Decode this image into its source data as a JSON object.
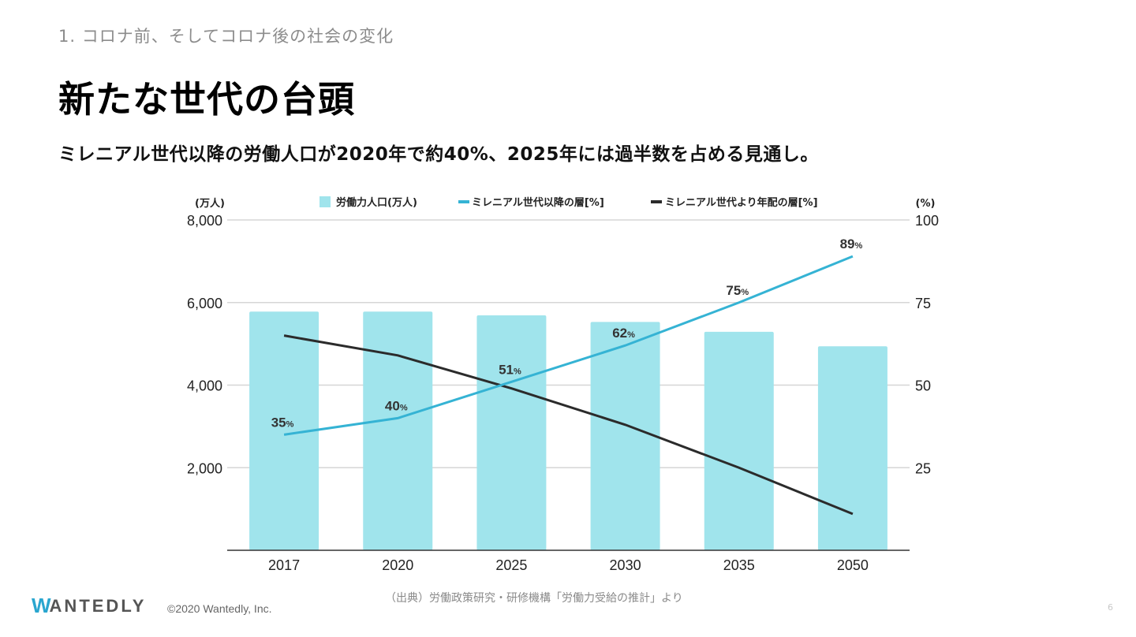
{
  "slide": {
    "section": "1. コロナ前、そしてコロナ後の社会の変化",
    "title": "新たな世代の台頭",
    "subtitle": "ミレニアル世代以降の労働人口が2020年で約40%、2025年には過半数を占める見通し。",
    "source": "（出典）労働政策研究・研修機構「労働力受給の推計」より",
    "page_number": "6"
  },
  "footer": {
    "logo_first": "W",
    "logo_rest": "ANTEDLY",
    "copyright": "©2020 Wantedly, Inc."
  },
  "colors": {
    "bar": "#a0e4ec",
    "millennial_line": "#35b3d4",
    "older_line": "#2b2b2b",
    "grid": "#d6d6d6",
    "axis": "#333333"
  },
  "chart_data": {
    "type": "bar",
    "title": "",
    "categories": [
      "2017",
      "2020",
      "2025",
      "2030",
      "2035",
      "2050"
    ],
    "left_axis": {
      "label": "(万人)",
      "ylim": [
        0,
        8000
      ],
      "ticks": [
        "2,000",
        "4,000",
        "6,000",
        "8,000"
      ],
      "tick_values": [
        2000,
        4000,
        6000,
        8000
      ]
    },
    "right_axis": {
      "label": "(%)",
      "ylim": [
        0,
        100
      ],
      "ticks": [
        "25",
        "50",
        "75",
        "100"
      ],
      "tick_values": [
        25,
        50,
        75,
        100
      ]
    },
    "grid": true,
    "legend_position": "top",
    "series": [
      {
        "name": "労働力人口(万人)",
        "type": "bar",
        "axis": "left",
        "values": [
          5780,
          5780,
          5690,
          5530,
          5290,
          4940
        ]
      },
      {
        "name": "ミレニアル世代以降の層[%]",
        "type": "line",
        "axis": "right",
        "values": [
          35,
          40,
          51,
          62,
          75,
          89
        ],
        "data_labels": [
          "35",
          "40",
          "51",
          "62",
          "75",
          "89"
        ],
        "label_suffix": "%"
      },
      {
        "name": "ミレニアル世代より年配の層[%]",
        "type": "line",
        "axis": "right",
        "values": [
          65,
          59,
          49,
          38,
          25,
          11
        ]
      }
    ]
  }
}
